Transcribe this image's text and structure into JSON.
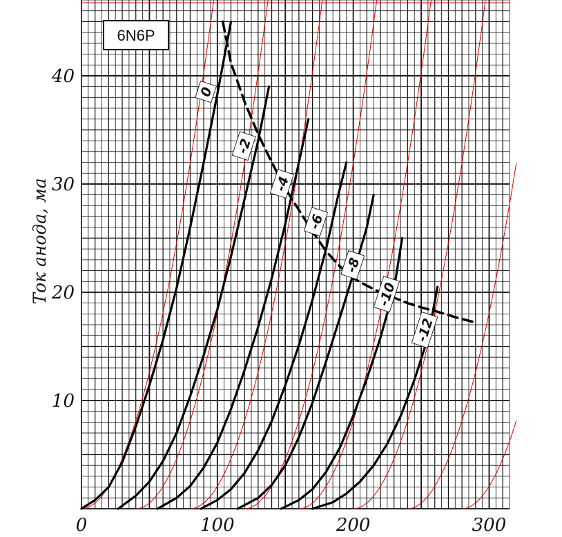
{
  "chart_data": {
    "type": "line",
    "title": "6N6P",
    "xlabel": "",
    "ylabel": "Ток анода, ма",
    "xlim": [
      0,
      315
    ],
    "ylim": [
      0,
      47
    ],
    "x_ticks": [
      "0",
      "100",
      "200",
      "300"
    ],
    "y_ticks": [
      "10",
      "20",
      "30",
      "40"
    ],
    "grid": true,
    "series": [
      {
        "name": "0",
        "x": [
          0,
          10,
          20,
          30,
          40,
          50,
          60,
          70,
          80,
          90,
          100,
          110
        ],
        "y": [
          0,
          0.8,
          2.0,
          4.3,
          7.6,
          11.4,
          15.6,
          20.4,
          26.0,
          32.0,
          38.3,
          45.0
        ]
      },
      {
        "name": "-2",
        "x": [
          27,
          40,
          50,
          60,
          70,
          80,
          90,
          100,
          110,
          120,
          130,
          138
        ],
        "y": [
          0,
          1.2,
          2.5,
          4.4,
          7.0,
          10.4,
          14.2,
          18.4,
          23.3,
          28.6,
          34.0,
          39.0
        ]
      },
      {
        "name": "-4",
        "x": [
          56,
          70,
          80,
          90,
          100,
          110,
          120,
          130,
          140,
          150,
          160,
          167
        ],
        "y": [
          0,
          1.0,
          2.1,
          3.8,
          6.1,
          9.2,
          12.8,
          16.8,
          21.3,
          26.3,
          32.0,
          36.0
        ]
      },
      {
        "name": "-6",
        "x": [
          88,
          100,
          110,
          120,
          130,
          140,
          150,
          160,
          170,
          180,
          189,
          195
        ],
        "y": [
          0,
          0.8,
          1.8,
          3.3,
          5.4,
          8.1,
          11.4,
          15.1,
          19.3,
          24.0,
          29.0,
          32.0
        ]
      },
      {
        "name": "-8",
        "x": [
          115,
          130,
          140,
          150,
          160,
          170,
          180,
          190,
          200,
          210,
          215
        ],
        "y": [
          0,
          1.0,
          2.2,
          4.0,
          6.6,
          9.8,
          13.6,
          17.6,
          21.7,
          26.0,
          29.0
        ]
      },
      {
        "name": "-10",
        "x": [
          147,
          160,
          170,
          180,
          190,
          200,
          210,
          220,
          230,
          236
        ],
        "y": [
          0,
          0.8,
          1.8,
          3.4,
          5.6,
          8.6,
          12.0,
          15.8,
          20.3,
          25.0
        ]
      },
      {
        "name": "-12",
        "x": [
          170,
          185,
          195,
          205,
          215,
          225,
          235,
          245,
          255,
          262
        ],
        "y": [
          0,
          0.6,
          1.4,
          2.5,
          4.0,
          6.0,
          8.6,
          11.9,
          15.8,
          20.5
        ]
      }
    ],
    "load_line": {
      "x": [
        104,
        110,
        120,
        130,
        140,
        150,
        160,
        170,
        180,
        190,
        200,
        210,
        220,
        230,
        240,
        250,
        262,
        275,
        290
      ],
      "y": [
        45.0,
        41.2,
        37.6,
        34.6,
        32.0,
        29.6,
        27.6,
        25.6,
        23.8,
        22.4,
        21.3,
        20.6,
        20.0,
        19.5,
        19.0,
        18.6,
        18.2,
        17.7,
        17.2
      ]
    },
    "anode_curves_red": [
      {
        "offset": 0
      },
      {
        "offset": 40
      },
      {
        "offset": 80
      },
      {
        "offset": 120
      },
      {
        "offset": 160
      },
      {
        "offset": 200
      },
      {
        "offset": 240
      },
      {
        "offset": 280
      }
    ]
  }
}
